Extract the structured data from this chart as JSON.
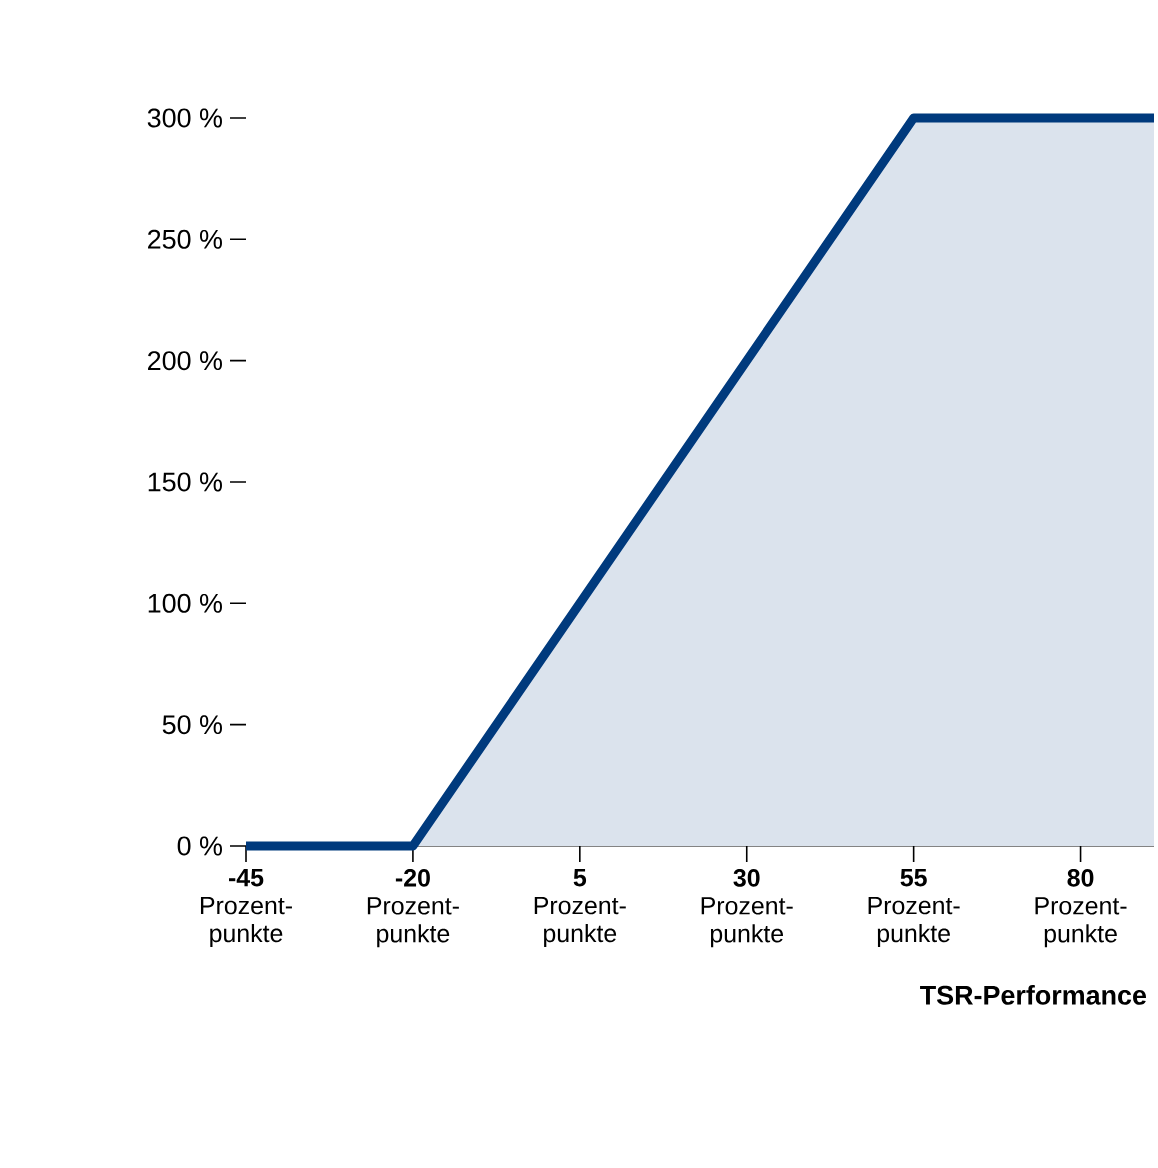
{
  "chart_data": {
    "type": "area",
    "xlabel": "TSR-Performance",
    "x": [
      -45,
      -20,
      55,
      80,
      91
    ],
    "series": [
      {
        "color": "#003a7d",
        "values": [
          0,
          0,
          300,
          300,
          300
        ]
      }
    ],
    "xlim": [
      -45,
      91
    ],
    "ylim": [
      0,
      300
    ],
    "xticks": [
      {
        "value": -45,
        "label": "**-45** Prozent-punkte"
      },
      {
        "value": -20,
        "label": "**-20** Prozent-punkte"
      },
      {
        "value": 5,
        "label": "**5** Prozent-punkte"
      },
      {
        "value": 30,
        "label": "**30** Prozent-punkte"
      },
      {
        "value": 55,
        "label": "**55** Prozent-punkte"
      },
      {
        "value": 80,
        "label": "**80** Prozent-punkte"
      }
    ],
    "yticks": [
      {
        "value": 0,
        "label": "0 %"
      },
      {
        "value": 50,
        "label": "50 %"
      },
      {
        "value": 100,
        "label": "100 %"
      },
      {
        "value": 150,
        "label": "150 %"
      },
      {
        "value": 200,
        "label": "200 %"
      },
      {
        "value": 250,
        "label": "250 %"
      },
      {
        "value": 300,
        "label": "300 %"
      }
    ],
    "grid": false
  }
}
